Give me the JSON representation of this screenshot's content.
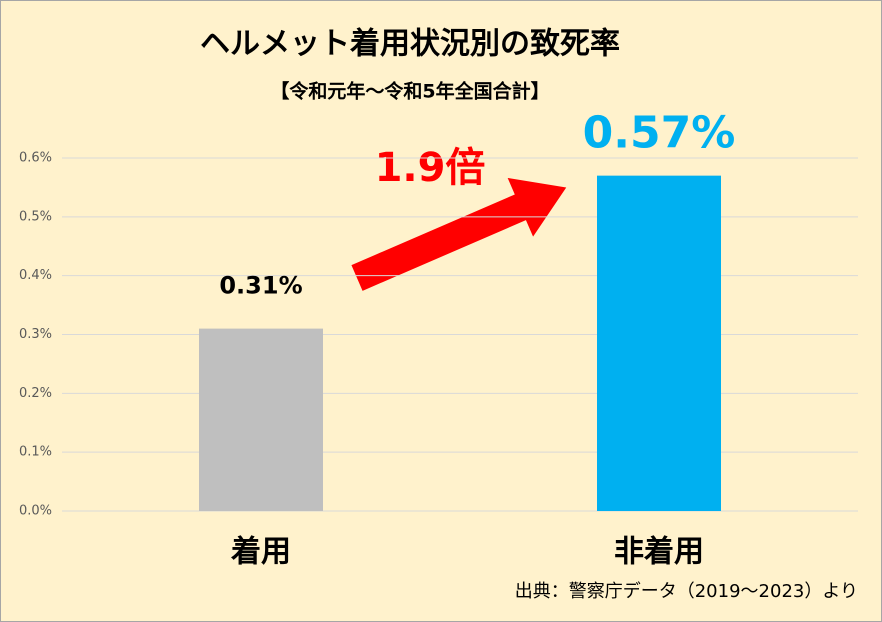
{
  "chart_data": {
    "type": "bar",
    "title": "ヘルメット着用状況別の致死率",
    "subtitle": "【令和元年～令和5年全国合計】",
    "categories": [
      "着用",
      "非着用"
    ],
    "values": [
      0.31,
      0.57
    ],
    "value_labels": [
      "0.31%",
      "0.57%"
    ],
    "colors": [
      "#bfbfbf",
      "#00b0f0"
    ],
    "value_label_colors": [
      "#000000",
      "#00b0f0"
    ],
    "ylim": [
      0,
      0.6
    ],
    "yticks": [
      {
        "value": 0,
        "label": "0.0%"
      },
      {
        "value": 0.1,
        "label": "0.1%"
      },
      {
        "value": 0.2,
        "label": "0.2%"
      },
      {
        "value": 0.3,
        "label": "0.3%"
      },
      {
        "value": 0.4,
        "label": "0.4%"
      },
      {
        "value": 0.5,
        "label": "0.5%"
      },
      {
        "value": 0.6,
        "label": "0.6%"
      }
    ],
    "grid": true,
    "annotation": "1.9倍",
    "source": "出典：警察庁データ（2019～2023）より"
  }
}
